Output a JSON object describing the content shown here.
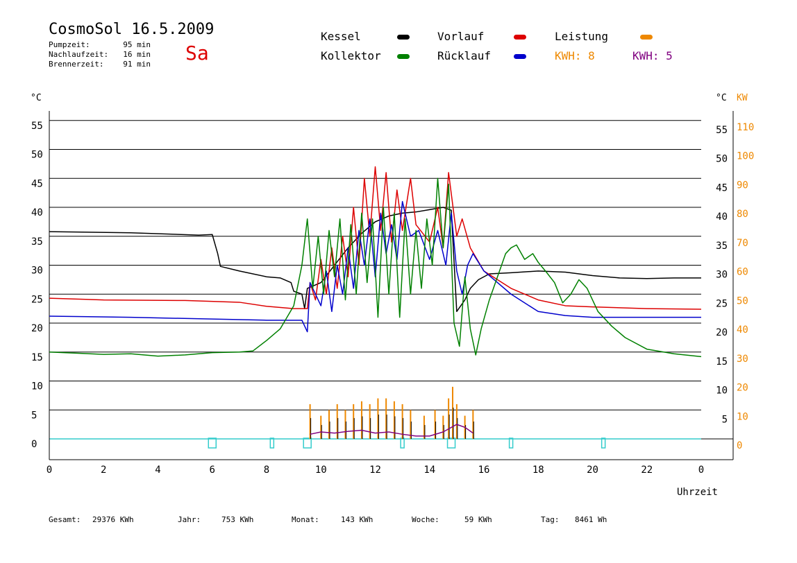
{
  "header": {
    "title": "CosmoSol 16.5.2009",
    "day": "Sa",
    "stats": [
      {
        "label": "Pumpzeit:",
        "value": "95 min"
      },
      {
        "label": "Nachlaufzeit:",
        "value": "16 min"
      },
      {
        "label": "Brennerzeit:",
        "value": "91 min"
      }
    ]
  },
  "legend": {
    "kessel": "Kessel",
    "kollektor": "Kollektor",
    "vorlauf": "Vorlauf",
    "ruecklauf": "Rücklauf",
    "leistung": "Leistung",
    "kwh1": "KWH: 8",
    "kwh2": "KWH: 5"
  },
  "footer": {
    "gesamt_label": "Gesamt:",
    "gesamt_value": "29376 KWh",
    "jahr_label": "Jahr:",
    "jahr_value": "753 KWh",
    "monat_label": "Monat:",
    "monat_value": "143 KWh",
    "woche_label": "Woche:",
    "woche_value": "59 KWh",
    "tag_label": "Tag:",
    "tag_value": "8461 Wh"
  },
  "colors": {
    "kessel": "#000000",
    "kollektor": "#008000",
    "vorlauf": "#dd0000",
    "ruecklauf": "#0000cc",
    "leistung": "#ee8800",
    "kwh2": "#800080",
    "pump": "#33cccc",
    "grid": "#000000"
  },
  "chart_data": {
    "type": "line",
    "xlabel": "Uhrzeit",
    "ylabel_left": "°C",
    "ylabel_right_c": "°C",
    "ylabel_right_kw": "KW",
    "xlim": [
      0,
      24
    ],
    "ylim": [
      -5,
      55
    ],
    "x_ticks": [
      "0",
      "2",
      "4",
      "6",
      "8",
      "10",
      "12",
      "14",
      "16",
      "18",
      "20",
      "22",
      "0"
    ],
    "y_ticks_left": [
      "0",
      "5",
      "10",
      "15",
      "20",
      "25",
      "30",
      "35",
      "40",
      "45",
      "50",
      "55"
    ],
    "y_ticks_right_c": [
      "5",
      "10",
      "15",
      "20",
      "25",
      "30",
      "35",
      "40",
      "45",
      "50",
      "55"
    ],
    "y_ticks_right_kw": [
      "0",
      "10",
      "20",
      "30",
      "40",
      "50",
      "60",
      "70",
      "80",
      "90",
      "100",
      "110"
    ],
    "grid": true,
    "series": [
      {
        "name": "Kessel",
        "key": "kessel",
        "points": [
          [
            0,
            35.8
          ],
          [
            3,
            35.6
          ],
          [
            5.5,
            35.2
          ],
          [
            6,
            35.3
          ],
          [
            6.2,
            32
          ],
          [
            6.3,
            29.8
          ],
          [
            7,
            29
          ],
          [
            8,
            28
          ],
          [
            8.5,
            27.8
          ],
          [
            8.9,
            27
          ],
          [
            9,
            25.5
          ],
          [
            9.3,
            25
          ],
          [
            9.4,
            22.5
          ],
          [
            9.5,
            26
          ],
          [
            10,
            27
          ],
          [
            10.5,
            30
          ],
          [
            11,
            33
          ],
          [
            11.5,
            35.5
          ],
          [
            12,
            37.5
          ],
          [
            12.5,
            38.5
          ],
          [
            13,
            39
          ],
          [
            13.5,
            39.2
          ],
          [
            14,
            39.6
          ],
          [
            14.5,
            40
          ],
          [
            14.8,
            39.5
          ],
          [
            15,
            22
          ],
          [
            15.3,
            24
          ],
          [
            15.5,
            26
          ],
          [
            15.8,
            27.5
          ],
          [
            16.2,
            28.5
          ],
          [
            17,
            28.7
          ],
          [
            18,
            29
          ],
          [
            19,
            28.8
          ],
          [
            20,
            28.2
          ],
          [
            21,
            27.8
          ],
          [
            22,
            27.7
          ],
          [
            23,
            27.8
          ],
          [
            24,
            27.8
          ]
        ]
      },
      {
        "name": "Vorlauf",
        "key": "vorlauf",
        "points": [
          [
            0,
            24.3
          ],
          [
            2,
            24
          ],
          [
            5,
            23.9
          ],
          [
            7,
            23.6
          ],
          [
            8,
            22.9
          ],
          [
            9,
            22.5
          ],
          [
            9.5,
            22.5
          ],
          [
            9.6,
            27
          ],
          [
            9.8,
            24
          ],
          [
            10,
            31
          ],
          [
            10.2,
            25
          ],
          [
            10.4,
            33
          ],
          [
            10.6,
            26
          ],
          [
            10.8,
            35
          ],
          [
            11,
            28
          ],
          [
            11.2,
            40
          ],
          [
            11.4,
            30
          ],
          [
            11.6,
            45
          ],
          [
            11.8,
            35
          ],
          [
            12,
            47
          ],
          [
            12.2,
            36
          ],
          [
            12.4,
            46
          ],
          [
            12.6,
            34
          ],
          [
            12.8,
            43
          ],
          [
            13,
            36
          ],
          [
            13.3,
            45
          ],
          [
            13.5,
            37
          ],
          [
            14,
            34
          ],
          [
            14.3,
            40
          ],
          [
            14.5,
            33
          ],
          [
            14.7,
            46
          ],
          [
            15,
            35
          ],
          [
            15.2,
            38
          ],
          [
            15.5,
            33
          ],
          [
            16,
            29
          ],
          [
            17,
            26
          ],
          [
            18,
            24
          ],
          [
            19,
            23
          ],
          [
            20,
            22.8
          ],
          [
            22,
            22.5
          ],
          [
            24,
            22.4
          ]
        ]
      },
      {
        "name": "Rücklauf",
        "key": "ruecklauf",
        "points": [
          [
            0,
            21.2
          ],
          [
            3,
            21
          ],
          [
            6,
            20.7
          ],
          [
            8,
            20.5
          ],
          [
            9.3,
            20.5
          ],
          [
            9.5,
            18.5
          ],
          [
            9.6,
            27
          ],
          [
            10,
            23
          ],
          [
            10.2,
            29
          ],
          [
            10.4,
            22
          ],
          [
            10.6,
            30
          ],
          [
            10.8,
            25
          ],
          [
            11,
            33
          ],
          [
            11.2,
            26
          ],
          [
            11.4,
            36
          ],
          [
            11.6,
            30
          ],
          [
            11.8,
            38
          ],
          [
            12,
            28
          ],
          [
            12.2,
            39
          ],
          [
            12.4,
            32
          ],
          [
            12.6,
            37
          ],
          [
            12.8,
            31
          ],
          [
            13,
            41
          ],
          [
            13.3,
            35
          ],
          [
            13.6,
            36
          ],
          [
            14,
            31
          ],
          [
            14.3,
            36
          ],
          [
            14.6,
            30
          ],
          [
            14.8,
            39
          ],
          [
            15,
            29
          ],
          [
            15.2,
            25
          ],
          [
            15.4,
            30
          ],
          [
            15.6,
            32
          ],
          [
            16,
            29
          ],
          [
            17,
            25
          ],
          [
            18,
            22
          ],
          [
            19,
            21.3
          ],
          [
            20,
            21
          ],
          [
            22,
            21
          ],
          [
            24,
            21
          ]
        ]
      },
      {
        "name": "Kollektor",
        "key": "kollektor",
        "points": [
          [
            0,
            15
          ],
          [
            1,
            14.8
          ],
          [
            2,
            14.6
          ],
          [
            3,
            14.7
          ],
          [
            4,
            14.3
          ],
          [
            5,
            14.5
          ],
          [
            6,
            14.9
          ],
          [
            7,
            15
          ],
          [
            7.5,
            15.2
          ],
          [
            8,
            17
          ],
          [
            8.5,
            19
          ],
          [
            9,
            23
          ],
          [
            9.3,
            30
          ],
          [
            9.5,
            38
          ],
          [
            9.7,
            26
          ],
          [
            9.9,
            35
          ],
          [
            10.1,
            25
          ],
          [
            10.3,
            36
          ],
          [
            10.5,
            28
          ],
          [
            10.7,
            38
          ],
          [
            10.9,
            24
          ],
          [
            11.1,
            37
          ],
          [
            11.3,
            25
          ],
          [
            11.5,
            39
          ],
          [
            11.7,
            27
          ],
          [
            11.9,
            38
          ],
          [
            12.1,
            21
          ],
          [
            12.3,
            40
          ],
          [
            12.5,
            25
          ],
          [
            12.7,
            39
          ],
          [
            12.9,
            21
          ],
          [
            13.1,
            38
          ],
          [
            13.3,
            25
          ],
          [
            13.5,
            36
          ],
          [
            13.7,
            26
          ],
          [
            13.9,
            38
          ],
          [
            14.1,
            30
          ],
          [
            14.3,
            45
          ],
          [
            14.5,
            33
          ],
          [
            14.7,
            44
          ],
          [
            14.9,
            20
          ],
          [
            15.1,
            16
          ],
          [
            15.3,
            28
          ],
          [
            15.5,
            19
          ],
          [
            15.7,
            14.5
          ],
          [
            15.9,
            19
          ],
          [
            16.2,
            24
          ],
          [
            16.5,
            28
          ],
          [
            16.8,
            32
          ],
          [
            17,
            33
          ],
          [
            17.2,
            33.5
          ],
          [
            17.5,
            31
          ],
          [
            17.8,
            32
          ],
          [
            18,
            30.5
          ],
          [
            18.3,
            28.8
          ],
          [
            18.6,
            27
          ],
          [
            18.9,
            23.5
          ],
          [
            19.2,
            25
          ],
          [
            19.5,
            27.5
          ],
          [
            19.8,
            26
          ],
          [
            20.2,
            22
          ],
          [
            20.7,
            19.5
          ],
          [
            21.2,
            17.5
          ],
          [
            22,
            15.5
          ],
          [
            23,
            14.7
          ],
          [
            24,
            14.2
          ]
        ]
      }
    ],
    "pump_marks": [
      6,
      8.2,
      9.5,
      13,
      14.8,
      17,
      20.4
    ],
    "leistung_spikes": [
      [
        9.6,
        6
      ],
      [
        10,
        4
      ],
      [
        10.3,
        5
      ],
      [
        10.6,
        6
      ],
      [
        10.9,
        5
      ],
      [
        11.2,
        6
      ],
      [
        11.5,
        6.5
      ],
      [
        11.8,
        6
      ],
      [
        12.1,
        7
      ],
      [
        12.4,
        7
      ],
      [
        12.7,
        6.5
      ],
      [
        13,
        6
      ],
      [
        13.3,
        5
      ],
      [
        13.8,
        4
      ],
      [
        14.2,
        5
      ],
      [
        14.5,
        4
      ],
      [
        14.7,
        7
      ],
      [
        14.85,
        9
      ],
      [
        15,
        6
      ],
      [
        15.3,
        4
      ],
      [
        15.6,
        5
      ]
    ],
    "kwh2_band": [
      [
        9.6,
        0.8
      ],
      [
        10,
        1.2
      ],
      [
        10.5,
        1
      ],
      [
        11,
        1.3
      ],
      [
        11.5,
        1.5
      ],
      [
        12,
        1
      ],
      [
        12.5,
        1.2
      ],
      [
        13,
        0.8
      ],
      [
        13.5,
        0.5
      ],
      [
        14,
        0.5
      ],
      [
        14.5,
        1.2
      ],
      [
        15,
        2.5
      ],
      [
        15.3,
        2
      ],
      [
        15.6,
        1
      ]
    ]
  }
}
